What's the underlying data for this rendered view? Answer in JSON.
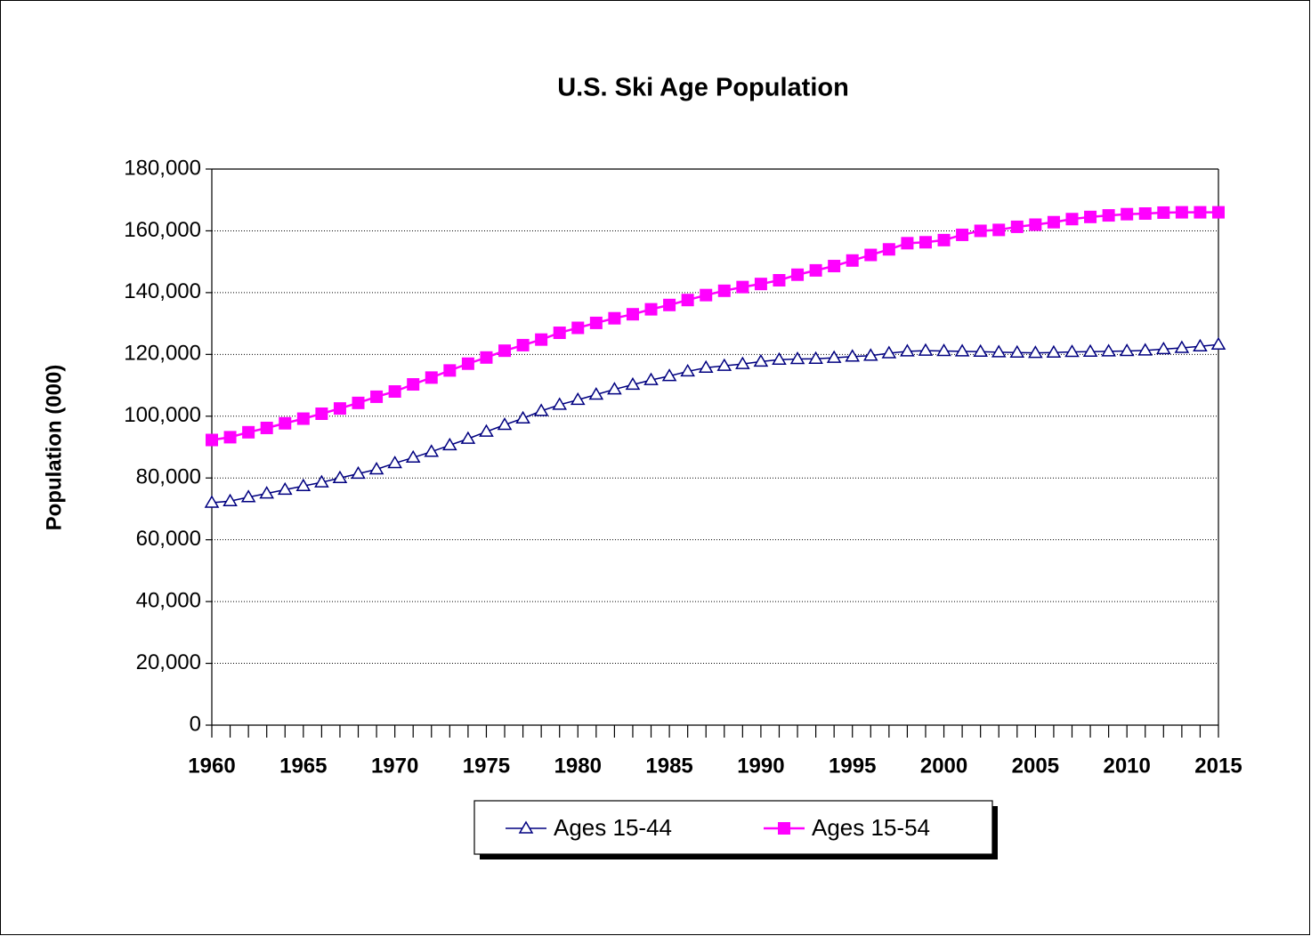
{
  "chart_data": {
    "type": "line",
    "title": "U.S. Ski Age Population",
    "ylabel": "Population (000)",
    "x": [
      1960,
      1961,
      1962,
      1963,
      1964,
      1965,
      1966,
      1967,
      1968,
      1969,
      1970,
      1971,
      1972,
      1973,
      1974,
      1975,
      1976,
      1977,
      1978,
      1979,
      1980,
      1981,
      1982,
      1983,
      1984,
      1985,
      1986,
      1987,
      1988,
      1989,
      1990,
      1991,
      1992,
      1993,
      1994,
      1995,
      1996,
      1997,
      1998,
      1999,
      2000,
      2001,
      2002,
      2003,
      2004,
      2005,
      2006,
      2007,
      2008,
      2009,
      2010,
      2011,
      2012,
      2013,
      2014,
      2015
    ],
    "xlim": [
      1960,
      2015
    ],
    "xticks": [
      1960,
      1965,
      1970,
      1975,
      1980,
      1985,
      1990,
      1995,
      2000,
      2005,
      2010,
      2015
    ],
    "ylim": [
      0,
      180000
    ],
    "yticks": [
      0,
      {
        "value": 20000,
        "label": "20,000"
      },
      {
        "value": 40000,
        "label": "40,000"
      },
      {
        "value": 60000,
        "label": "60,000"
      },
      {
        "value": 80000,
        "label": "80,000"
      },
      {
        "value": 100000,
        "label": "100,000"
      },
      {
        "value": 120000,
        "label": "120,000"
      },
      {
        "value": 140000,
        "label": "140,000"
      },
      {
        "value": 160000,
        "label": "160,000"
      },
      {
        "value": 180000,
        "label": "180,000"
      }
    ],
    "grid": true,
    "legend": "bottom",
    "series": [
      {
        "name": "Ages 15-44",
        "color": "#000080",
        "marker": "triangle",
        "values": [
          72000,
          72500,
          73800,
          75000,
          76200,
          77400,
          78600,
          80000,
          81400,
          82800,
          84800,
          86600,
          88500,
          90600,
          92700,
          95000,
          97200,
          99300,
          101700,
          103700,
          105300,
          107000,
          108700,
          110200,
          111700,
          113000,
          114500,
          115700,
          116300,
          116900,
          117700,
          118300,
          118500,
          118600,
          118900,
          119300,
          119600,
          120400,
          121000,
          121200,
          121100,
          121000,
          120900,
          120700,
          120600,
          120500,
          120600,
          120800,
          120900,
          121000,
          121100,
          121300,
          121700,
          122100,
          122600,
          123200
        ]
      },
      {
        "name": "Ages 15-54",
        "color": "#ff00ff",
        "marker": "square",
        "values": [
          92300,
          93200,
          94800,
          96200,
          97700,
          99200,
          100800,
          102500,
          104300,
          106300,
          108000,
          110300,
          112500,
          114800,
          117000,
          119000,
          121200,
          123000,
          124800,
          127000,
          128600,
          130200,
          131700,
          133000,
          134600,
          136000,
          137600,
          139200,
          140600,
          141800,
          142800,
          144000,
          145800,
          147200,
          148600,
          150400,
          152200,
          154000,
          156000,
          156300,
          157000,
          158700,
          160000,
          160300,
          161300,
          162000,
          162800,
          163800,
          164500,
          165000,
          165400,
          165600,
          165900,
          166000,
          166000,
          166000
        ]
      }
    ]
  }
}
